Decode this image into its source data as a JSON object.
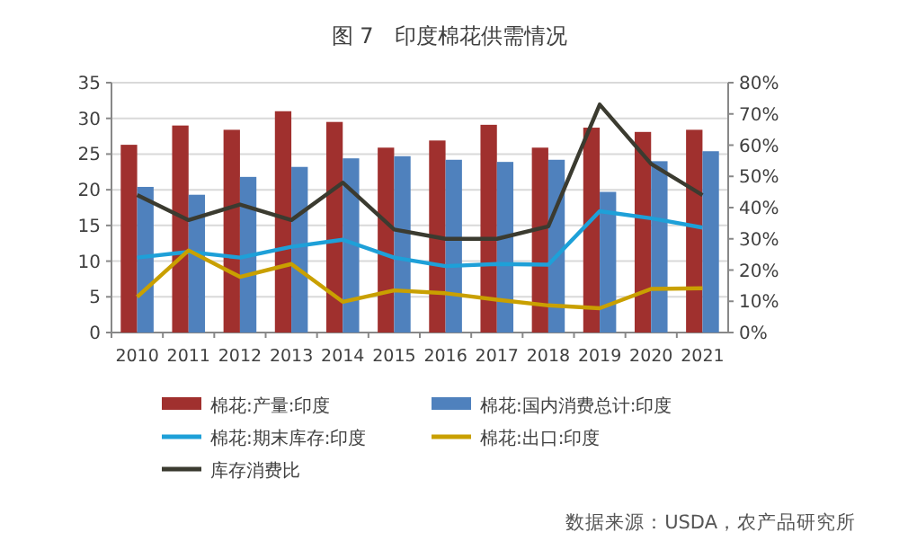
{
  "chart_data": {
    "type": "bar",
    "title": "图 7　印度棉花供需情况",
    "categories": [
      "2010",
      "2011",
      "2012",
      "2013",
      "2014",
      "2015",
      "2016",
      "2017",
      "2018",
      "2019",
      "2020",
      "2021"
    ],
    "series": [
      {
        "name": "棉花:产量:印度",
        "color": "#a0302e",
        "values": [
          26.3,
          29,
          28.4,
          31,
          29.5,
          25.9,
          26.9,
          29.1,
          25.9,
          28.7,
          28.1,
          28.4
        ]
      },
      {
        "name": "棉花:国内消费总计:印度",
        "color": "#4f81bd",
        "values": [
          20.4,
          19.3,
          21.8,
          23.2,
          24.4,
          24.7,
          24.2,
          23.9,
          24.2,
          19.7,
          24,
          25.4
        ]
      },
      {
        "name": "棉花:期末库存:印度",
        "type": "line",
        "color": "#1ea0d8",
        "values": [
          10.5,
          11.3,
          10.5,
          12,
          13,
          10.5,
          9.3,
          9.6,
          9.5,
          17,
          16,
          14.7
        ]
      },
      {
        "name": "棉花:出口:印度",
        "type": "line",
        "color": "#c9a000",
        "values": [
          5,
          11.5,
          7.8,
          9.6,
          4.3,
          5.9,
          5.5,
          4.6,
          3.8,
          3.4,
          6.1,
          6.2
        ]
      },
      {
        "name": "库存消费比",
        "type": "line",
        "axis": "y2",
        "color": "#3b3b30",
        "values": [
          44,
          36,
          41,
          36,
          48,
          33,
          30,
          30,
          34,
          73,
          54,
          44
        ]
      }
    ],
    "ylim": [
      0,
      35
    ],
    "yticks": [
      0,
      5,
      10,
      15,
      20,
      25,
      30,
      35
    ],
    "y2lim": [
      0,
      80
    ],
    "y2ticks": [
      {
        "value": 0,
        "label": "0%"
      },
      {
        "value": 10,
        "label": "10%"
      },
      {
        "value": 20,
        "label": "20%"
      },
      {
        "value": 30,
        "label": "30%"
      },
      {
        "value": 40,
        "label": "40%"
      },
      {
        "value": 50,
        "label": "50%"
      },
      {
        "value": 60,
        "label": "60%"
      },
      {
        "value": 70,
        "label": "70%"
      },
      {
        "value": 80,
        "label": "80%"
      }
    ],
    "grid": "y",
    "legend": "bottom",
    "marker": "none",
    "line_style": "solid",
    "annotations": [
      "数据来源：USDA，农产品研究所"
    ]
  }
}
